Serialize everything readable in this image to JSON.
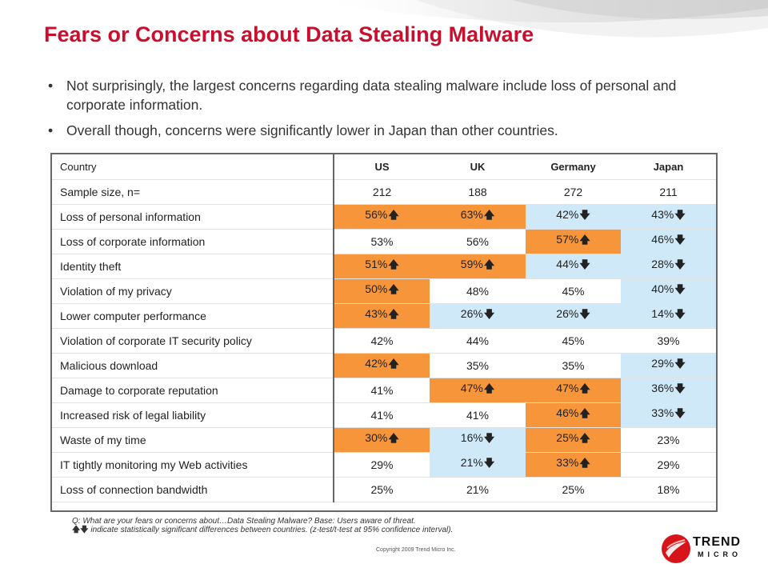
{
  "title": "Fears or Concerns about Data Stealing Malware",
  "bullets": [
    "Not surprisingly, the largest concerns regarding data stealing malware include loss of personal and corporate information.",
    "Overall though, concerns were significantly lower in Japan than other countries."
  ],
  "table": {
    "header": {
      "label": "Country",
      "cols": [
        "US",
        "UK",
        "Germany",
        "Japan"
      ]
    },
    "sample": {
      "label": "Sample size, n=",
      "cols": [
        "212",
        "188",
        "272",
        "211"
      ]
    },
    "rows": [
      {
        "label": "Loss of personal information",
        "cells": [
          {
            "v": "56%",
            "s": "up"
          },
          {
            "v": "63%",
            "s": "up"
          },
          {
            "v": "42%",
            "s": "down"
          },
          {
            "v": "43%",
            "s": "down"
          }
        ]
      },
      {
        "label": "Loss of corporate information",
        "cells": [
          {
            "v": "53%",
            "s": ""
          },
          {
            "v": "56%",
            "s": ""
          },
          {
            "v": "57%",
            "s": "up"
          },
          {
            "v": "46%",
            "s": "down"
          }
        ]
      },
      {
        "label": "Identity theft",
        "cells": [
          {
            "v": "51%",
            "s": "up"
          },
          {
            "v": "59%",
            "s": "up"
          },
          {
            "v": "44%",
            "s": "down"
          },
          {
            "v": "28%",
            "s": "down"
          }
        ]
      },
      {
        "label": "Violation of my privacy",
        "cells": [
          {
            "v": "50%",
            "s": "up"
          },
          {
            "v": "48%",
            "s": ""
          },
          {
            "v": "45%",
            "s": ""
          },
          {
            "v": "40%",
            "s": "down"
          }
        ]
      },
      {
        "label": "Lower computer performance",
        "cells": [
          {
            "v": "43%",
            "s": "up"
          },
          {
            "v": "26%",
            "s": "down"
          },
          {
            "v": "26%",
            "s": "down"
          },
          {
            "v": "14%",
            "s": "down"
          }
        ]
      },
      {
        "label": "Violation of corporate IT security policy",
        "cells": [
          {
            "v": "42%",
            "s": ""
          },
          {
            "v": "44%",
            "s": ""
          },
          {
            "v": "45%",
            "s": ""
          },
          {
            "v": "39%",
            "s": ""
          }
        ]
      },
      {
        "label": "Malicious download",
        "cells": [
          {
            "v": "42%",
            "s": "up"
          },
          {
            "v": "35%",
            "s": ""
          },
          {
            "v": "35%",
            "s": ""
          },
          {
            "v": "29%",
            "s": "down"
          }
        ]
      },
      {
        "label": "Damage to corporate reputation",
        "cells": [
          {
            "v": "41%",
            "s": ""
          },
          {
            "v": "47%",
            "s": "up"
          },
          {
            "v": "47%",
            "s": "up"
          },
          {
            "v": "36%",
            "s": "down"
          }
        ]
      },
      {
        "label": "Increased risk of legal liability",
        "cells": [
          {
            "v": "41%",
            "s": ""
          },
          {
            "v": "41%",
            "s": ""
          },
          {
            "v": "46%",
            "s": "up"
          },
          {
            "v": "33%",
            "s": "down"
          }
        ]
      },
      {
        "label": "Waste of my time",
        "cells": [
          {
            "v": "30%",
            "s": "up"
          },
          {
            "v": "16%",
            "s": "down"
          },
          {
            "v": "25%",
            "s": "up"
          },
          {
            "v": "23%",
            "s": ""
          }
        ]
      },
      {
        "label": "IT tightly monitoring my Web activities",
        "cells": [
          {
            "v": "29%",
            "s": ""
          },
          {
            "v": "21%",
            "s": "down"
          },
          {
            "v": "33%",
            "s": "up"
          },
          {
            "v": "29%",
            "s": ""
          }
        ]
      },
      {
        "label": "Loss of connection bandwidth",
        "cells": [
          {
            "v": "25%",
            "s": ""
          },
          {
            "v": "21%",
            "s": ""
          },
          {
            "v": "25%",
            "s": ""
          },
          {
            "v": "18%",
            "s": ""
          }
        ]
      }
    ]
  },
  "colors": {
    "up": "#f7953a",
    "down": "#cfe9f8",
    "title": "#c8102e"
  },
  "footnote": {
    "line1": "Q: What are your fears or concerns about…Data Stealing Malware? Base: Users aware of threat.",
    "line2_arrows": "🡅🡇",
    "line2": "indicate statistically significant differences between countries. (z-test/t-test at 95% confidence interval)."
  },
  "copyright": "Copyright 2009   Trend Micro Inc.",
  "logo": {
    "name": "TREND",
    "sub": "MICRO",
    "icon": "trend-micro-logo-icon"
  }
}
